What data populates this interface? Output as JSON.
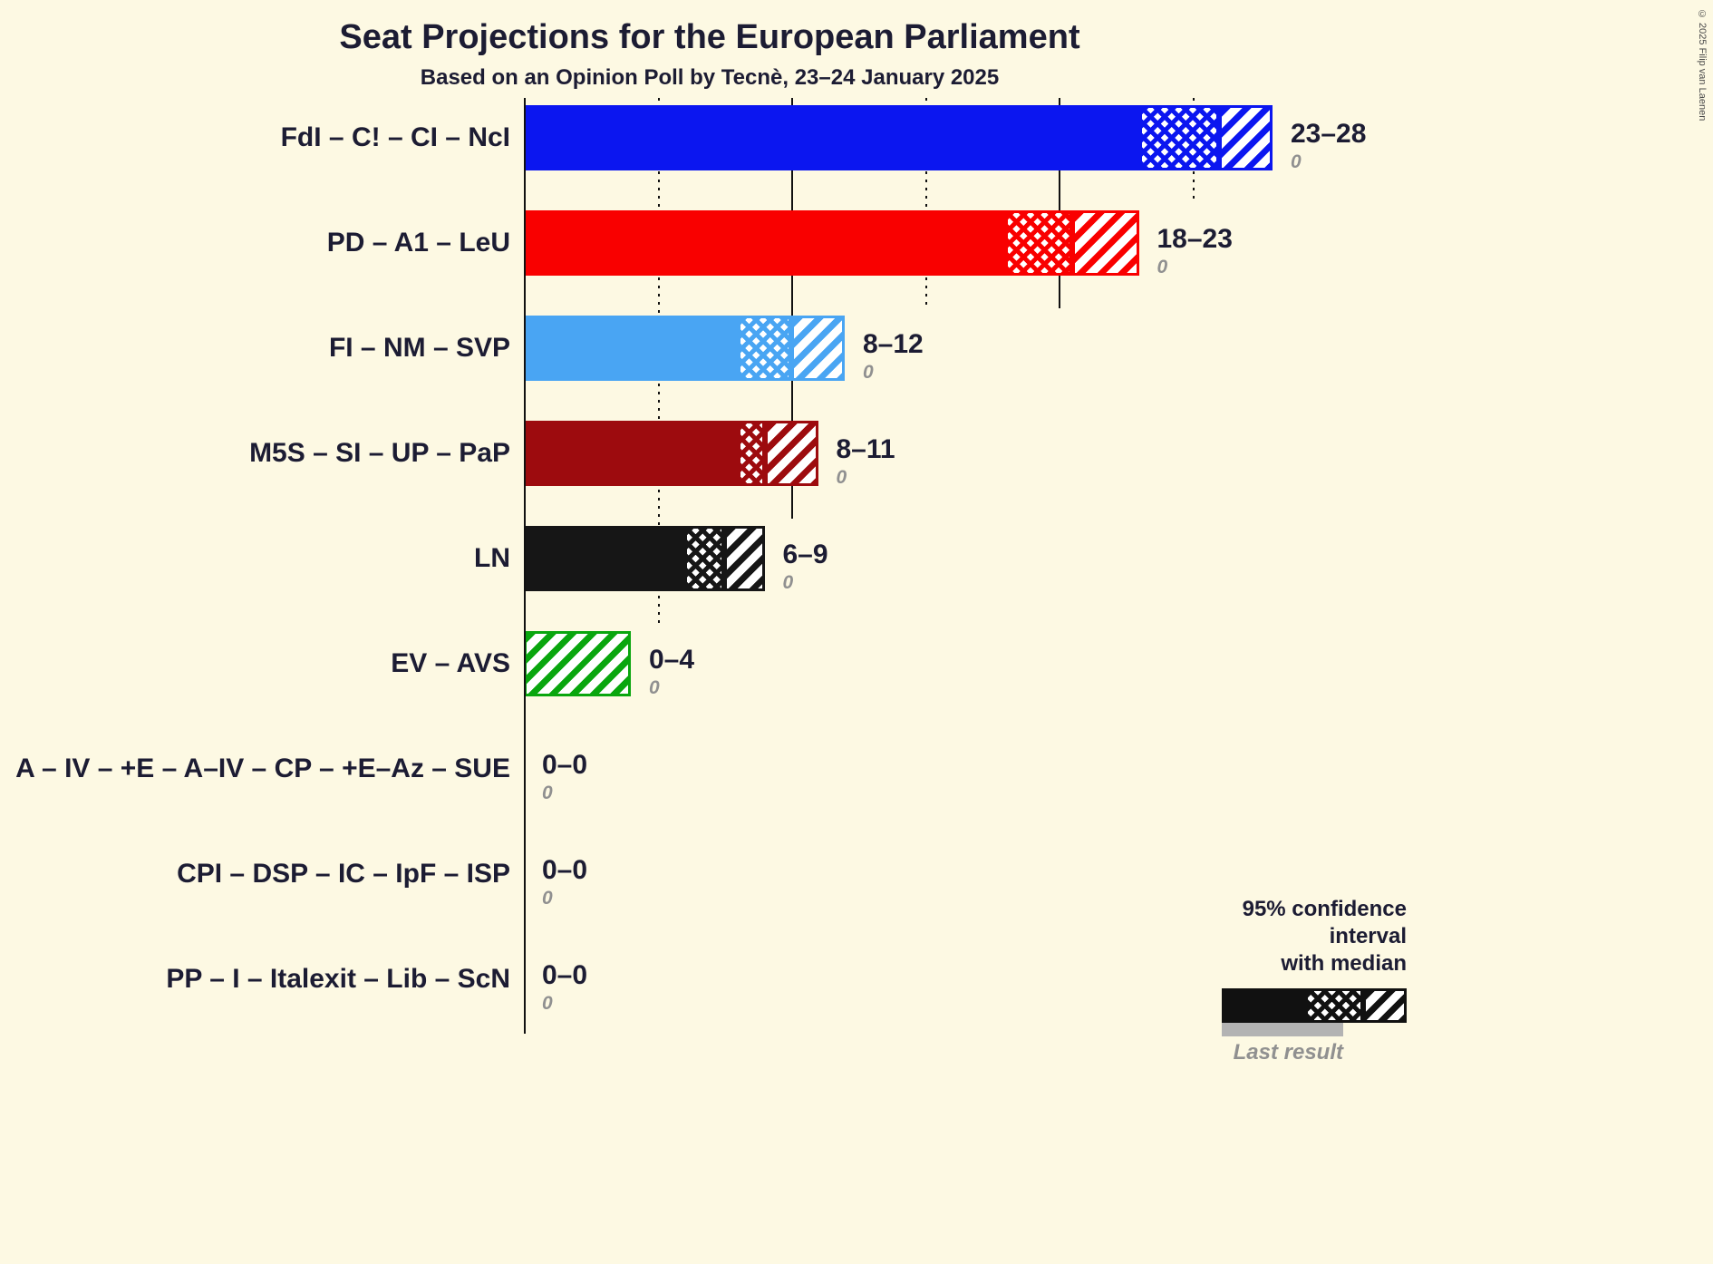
{
  "title": "Seat Projections for the European Parliament",
  "subtitle": "Based on an Opinion Poll by Tecnè, 23–24 January 2025",
  "copyright": "© 2025 Filip van Laenen",
  "legend": {
    "line1": "95% confidence interval",
    "line2": "with median",
    "last_result": "Last result"
  },
  "colors": {
    "background": "#fdf9e3",
    "text": "#1c1c33",
    "muted": "#909090",
    "last_result_bar": "#b3b3b3"
  },
  "chart_data": {
    "type": "bar",
    "orientation": "horizontal",
    "title": "Seat Projections for the European Parliament",
    "subtitle": "Based on an Opinion Poll by Tecnè, 23–24 January 2025",
    "unit": "seats",
    "x_axis": {
      "min": 0,
      "max": 28.5,
      "gridlines": [
        {
          "value": 5,
          "style": "dotted"
        },
        {
          "value": 10,
          "style": "solid"
        },
        {
          "value": 15,
          "style": "dotted"
        },
        {
          "value": 20,
          "style": "solid"
        },
        {
          "value": 25,
          "style": "dotted"
        }
      ]
    },
    "legend_note": "95% confidence interval with median; gray bar = last result",
    "parties": [
      {
        "label": "FdI – C! – CI – NcI",
        "ci_low": 23,
        "median": 26,
        "ci_high": 28,
        "range_label": "23–28",
        "last_result": 0,
        "color": "#0b16f0"
      },
      {
        "label": "PD – A1 – LeU",
        "ci_low": 18,
        "median": 20.5,
        "ci_high": 23,
        "range_label": "18–23",
        "last_result": 0,
        "color": "#f90000"
      },
      {
        "label": "FI – NM – SVP",
        "ci_low": 8,
        "median": 10,
        "ci_high": 12,
        "range_label": "8–12",
        "last_result": 0,
        "color": "#49a5f3"
      },
      {
        "label": "M5S – SI – UP – PaP",
        "ci_low": 8,
        "median": 9,
        "ci_high": 11,
        "range_label": "8–11",
        "last_result": 0,
        "color": "#9d0b0e"
      },
      {
        "label": "LN",
        "ci_low": 6,
        "median": 7.5,
        "ci_high": 9,
        "range_label": "6–9",
        "last_result": 0,
        "color": "#161616"
      },
      {
        "label": "EV – AVS",
        "ci_low": 0,
        "median": 0,
        "ci_high": 4,
        "range_label": "0–4",
        "last_result": 0,
        "color": "#09a60e"
      },
      {
        "label": "A – IV – +E – A–IV – CP – +E–Az – SUE",
        "ci_low": 0,
        "median": 0,
        "ci_high": 0,
        "range_label": "0–0",
        "last_result": 0,
        "color": "#161616"
      },
      {
        "label": "CPI – DSP – IC – IpF – ISP",
        "ci_low": 0,
        "median": 0,
        "ci_high": 0,
        "range_label": "0–0",
        "last_result": 0,
        "color": "#161616"
      },
      {
        "label": "PP – I – Italexit – Lib – ScN",
        "ci_low": 0,
        "median": 0,
        "ci_high": 0,
        "range_label": "0–0",
        "last_result": 0,
        "color": "#161616"
      }
    ]
  }
}
